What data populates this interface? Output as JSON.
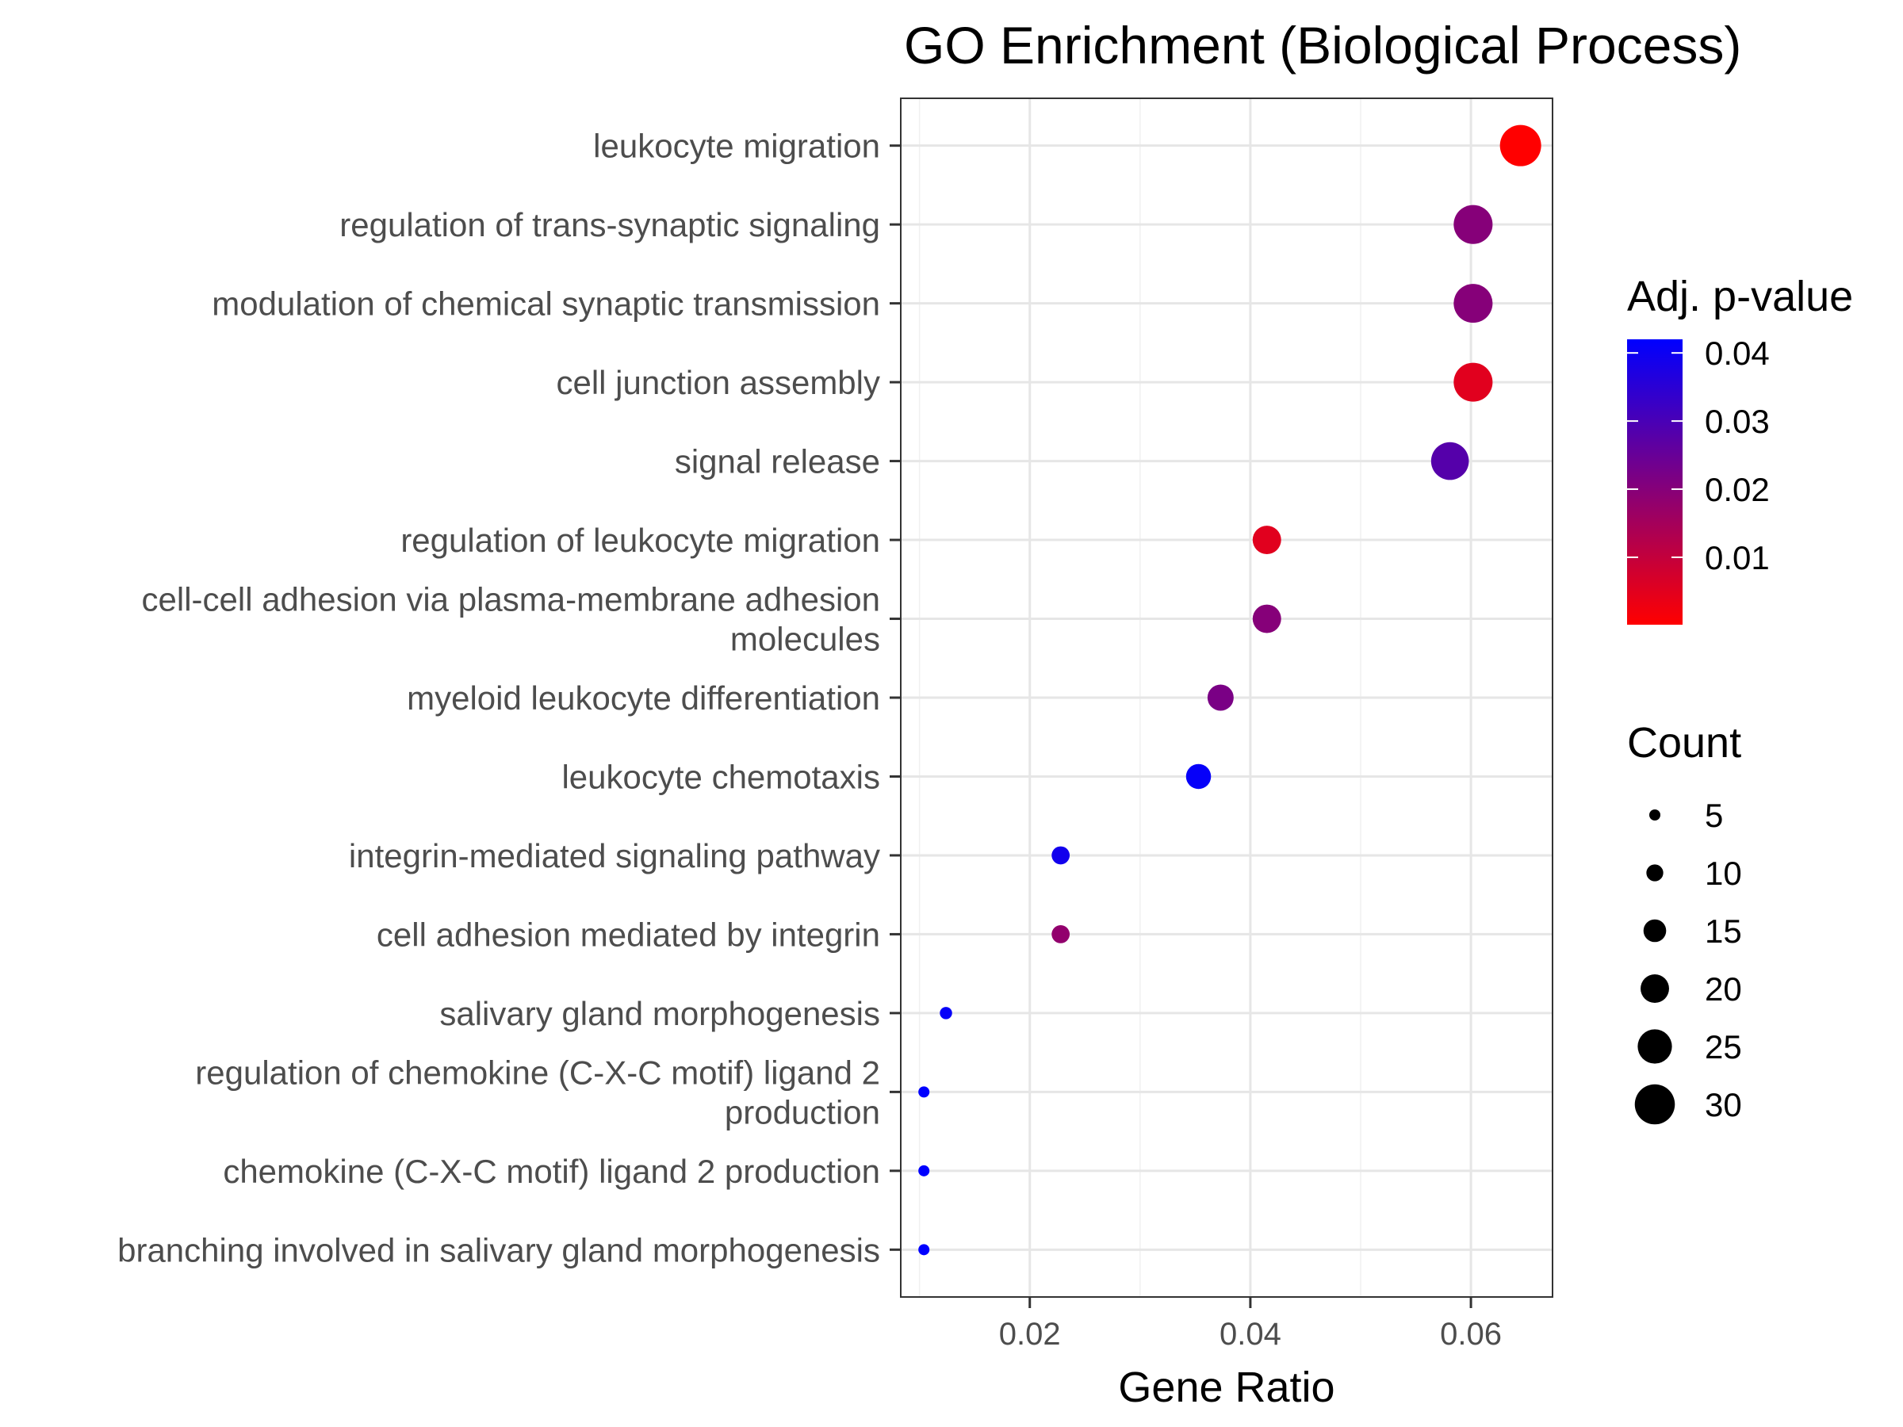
{
  "chart_data": {
    "type": "scatter",
    "title": "GO Enrichment (Biological Process)",
    "xlabel": "Gene Ratio",
    "ylabel": "",
    "xlim": [
      0.0083,
      0.0674
    ],
    "xticks": [
      0.02,
      0.04,
      0.06
    ],
    "xtick_labels": [
      "0.02",
      "0.04",
      "0.06"
    ],
    "grid": true,
    "points": [
      {
        "term": [
          "leukocyte migration"
        ],
        "gene_ratio": 0.0645,
        "p_adjust": 0.0001,
        "count": 31
      },
      {
        "term": [
          "regulation of trans-synaptic signaling"
        ],
        "gene_ratio": 0.0602,
        "p_adjust": 0.02,
        "count": 29
      },
      {
        "term": [
          "modulation of chemical synaptic transmission"
        ],
        "gene_ratio": 0.0602,
        "p_adjust": 0.02,
        "count": 29
      },
      {
        "term": [
          "cell junction assembly"
        ],
        "gene_ratio": 0.0602,
        "p_adjust": 0.005,
        "count": 29
      },
      {
        "term": [
          "signal release"
        ],
        "gene_ratio": 0.0581,
        "p_adjust": 0.028,
        "count": 28
      },
      {
        "term": [
          "regulation of leukocyte migration"
        ],
        "gene_ratio": 0.0415,
        "p_adjust": 0.005,
        "count": 20
      },
      {
        "term": [
          "cell-cell adhesion via plasma-membrane adhesion",
          "molecules"
        ],
        "gene_ratio": 0.0415,
        "p_adjust": 0.02,
        "count": 20
      },
      {
        "term": [
          "myeloid leukocyte differentiation"
        ],
        "gene_ratio": 0.0373,
        "p_adjust": 0.022,
        "count": 18
      },
      {
        "term": [
          "leukocyte chemotaxis"
        ],
        "gene_ratio": 0.0353,
        "p_adjust": 0.041,
        "count": 17
      },
      {
        "term": [
          "integrin-mediated signaling pathway"
        ],
        "gene_ratio": 0.0228,
        "p_adjust": 0.039,
        "count": 11
      },
      {
        "term": [
          "cell adhesion mediated by integrin"
        ],
        "gene_ratio": 0.0228,
        "p_adjust": 0.018,
        "count": 11
      },
      {
        "term": [
          "salivary gland morphogenesis"
        ],
        "gene_ratio": 0.0124,
        "p_adjust": 0.041,
        "count": 6
      },
      {
        "term": [
          "regulation of chemokine (C-X-C motif) ligand 2",
          "production"
        ],
        "gene_ratio": 0.0104,
        "p_adjust": 0.042,
        "count": 5
      },
      {
        "term": [
          "chemokine (C-X-C motif) ligand 2 production"
        ],
        "gene_ratio": 0.0104,
        "p_adjust": 0.042,
        "count": 5
      },
      {
        "term": [
          "branching involved in salivary gland morphogenesis"
        ],
        "gene_ratio": 0.0104,
        "p_adjust": 0.042,
        "count": 5
      }
    ],
    "color_legend": {
      "title": "Adj. p-value",
      "min": 0.0001,
      "max": 0.042,
      "low_color": "#ff0000",
      "high_color": "#0000ff",
      "ticks": [
        0.01,
        0.02,
        0.03,
        0.04
      ],
      "tick_labels": [
        "0.01",
        "0.02",
        "0.03",
        "0.04"
      ]
    },
    "size_legend": {
      "title": "Count",
      "values": [
        5,
        10,
        15,
        20,
        25,
        30
      ],
      "labels": [
        "5",
        "10",
        "15",
        "20",
        "25",
        "30"
      ],
      "point_color": "#000000"
    },
    "legend_position": "right"
  }
}
